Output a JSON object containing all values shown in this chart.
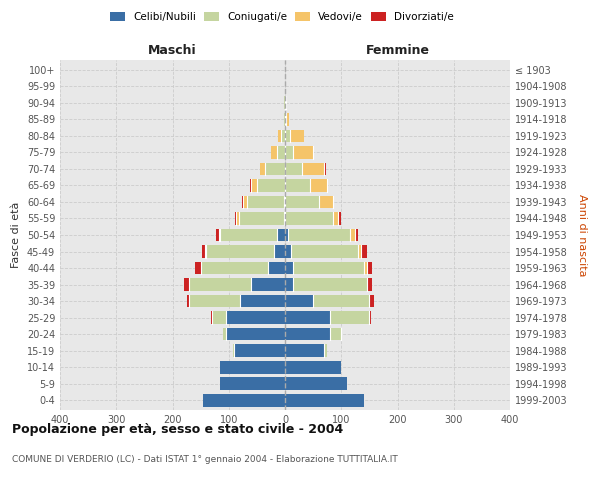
{
  "age_groups": [
    "0-4",
    "5-9",
    "10-14",
    "15-19",
    "20-24",
    "25-29",
    "30-34",
    "35-39",
    "40-44",
    "45-49",
    "50-54",
    "55-59",
    "60-64",
    "65-69",
    "70-74",
    "75-79",
    "80-84",
    "85-89",
    "90-94",
    "95-99",
    "100+"
  ],
  "birth_years": [
    "1999-2003",
    "1994-1998",
    "1989-1993",
    "1984-1988",
    "1979-1983",
    "1974-1978",
    "1969-1973",
    "1964-1968",
    "1959-1963",
    "1954-1958",
    "1949-1953",
    "1944-1948",
    "1939-1943",
    "1934-1938",
    "1929-1933",
    "1924-1928",
    "1919-1923",
    "1914-1918",
    "1909-1913",
    "1904-1908",
    "≤ 1903"
  ],
  "maschi": {
    "celibi": [
      145,
      115,
      115,
      90,
      105,
      105,
      80,
      60,
      30,
      20,
      15,
      2,
      2,
      0,
      0,
      0,
      0,
      0,
      0,
      0,
      0
    ],
    "coniugati": [
      0,
      0,
      0,
      2,
      5,
      25,
      90,
      110,
      120,
      120,
      100,
      80,
      65,
      50,
      35,
      15,
      8,
      2,
      2,
      0,
      0
    ],
    "vedovi": [
      0,
      0,
      0,
      0,
      0,
      0,
      0,
      0,
      0,
      2,
      3,
      5,
      8,
      10,
      10,
      10,
      5,
      0,
      0,
      0,
      0
    ],
    "divorziati": [
      0,
      0,
      0,
      0,
      0,
      2,
      5,
      10,
      10,
      5,
      5,
      2,
      2,
      2,
      0,
      0,
      0,
      0,
      0,
      0,
      0
    ]
  },
  "femmine": {
    "nubili": [
      140,
      110,
      100,
      70,
      80,
      80,
      50,
      15,
      15,
      10,
      5,
      0,
      0,
      0,
      0,
      0,
      0,
      0,
      0,
      0,
      0
    ],
    "coniugate": [
      0,
      0,
      0,
      5,
      20,
      70,
      100,
      130,
      125,
      120,
      110,
      85,
      60,
      45,
      30,
      15,
      8,
      2,
      2,
      0,
      0
    ],
    "vedove": [
      0,
      0,
      0,
      0,
      0,
      0,
      0,
      0,
      5,
      5,
      10,
      10,
      25,
      30,
      40,
      35,
      25,
      5,
      2,
      0,
      0
    ],
    "divorziate": [
      0,
      0,
      0,
      0,
      2,
      2,
      8,
      10,
      10,
      10,
      5,
      5,
      2,
      2,
      2,
      2,
      0,
      0,
      0,
      0,
      0
    ]
  },
  "colors": {
    "celibi_nubili": "#3A6EA5",
    "coniugati": "#C5D5A0",
    "vedovi": "#F5C469",
    "divorziati": "#CC2222"
  },
  "title": "Popolazione per età, sesso e stato civile - 2004",
  "subtitle": "COMUNE DI VERDERIO (LC) - Dati ISTAT 1° gennaio 2004 - Elaborazione TUTTITALIA.IT",
  "xlabel_left": "Maschi",
  "xlabel_right": "Femmine",
  "ylabel_left": "Fasce di età",
  "ylabel_right": "Anni di nascita",
  "xlim": 400,
  "bg_color": "#ffffff",
  "plot_bg": "#e8e8e8",
  "grid_color": "#cccccc"
}
